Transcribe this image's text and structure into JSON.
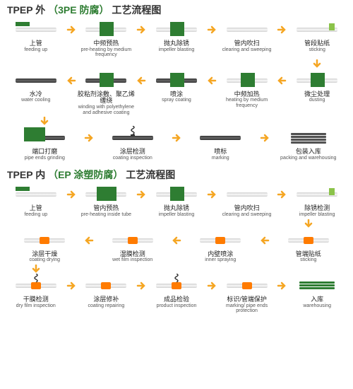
{
  "colors": {
    "green": "#2e7d32",
    "arrow": "#f5a623",
    "text": "#222",
    "subtext": "#555",
    "pipe": "#d0d0d0",
    "pipeDark": "#444",
    "orange": "#ff7b00"
  },
  "section1": {
    "title_prefix": "TPEP 外",
    "title_green": "（3PE 防腐）",
    "title_suffix": "工艺流程图",
    "rows": [
      {
        "dir": "right",
        "steps": [
          {
            "cn": "上管",
            "en": "feeding up",
            "icon": "pipe-rack"
          },
          {
            "cn": "中频预热",
            "en": "pre-heating by medium frequency",
            "icon": "pipe-greenbox"
          },
          {
            "cn": "抛丸除锈",
            "en": "impeller blasting",
            "icon": "pipe-greenbox"
          },
          {
            "cn": "管内吹扫",
            "en": "clearing and sweeping",
            "icon": "pipe"
          },
          {
            "cn": "管段贴纸",
            "en": "sticking",
            "icon": "pipe-tag"
          }
        ]
      },
      {
        "dir": "left",
        "steps": [
          {
            "cn": "水冷",
            "en": "water cooling",
            "icon": "pipe-dark"
          },
          {
            "cn": "胶粘剂涂敷、聚乙烯缠绕",
            "en": "winding with polyethylene and adhesive coating",
            "icon": "pipe-dark-greenbox"
          },
          {
            "cn": "喷涂",
            "en": "spray coating",
            "icon": "pipe-dark-greenbox"
          },
          {
            "cn": "中频加热",
            "en": "heating by medium frequency",
            "icon": "pipe-greenbox"
          },
          {
            "cn": "微尘处理",
            "en": "dusting",
            "icon": "pipe-greenbox"
          }
        ]
      },
      {
        "dir": "right",
        "steps": [
          {
            "cn": "端口打磨",
            "en": "pipe ends grinding",
            "icon": "grinder"
          },
          {
            "cn": "涂层检测",
            "en": "coating inspection",
            "icon": "pipe-dark-spring"
          },
          {
            "cn": "喷标",
            "en": "marking",
            "icon": "pipe-dark"
          },
          {
            "cn": "包装入库",
            "en": "packing and warehousing",
            "icon": "pipes-stacked"
          }
        ]
      }
    ]
  },
  "section2": {
    "title_prefix": "TPEP 内",
    "title_green": "（EP 涂塑防腐）",
    "title_suffix": "工艺流程图",
    "rows": [
      {
        "dir": "right",
        "steps": [
          {
            "cn": "上管",
            "en": "feeding up",
            "icon": "pipe-rack"
          },
          {
            "cn": "管内预热",
            "en": "pre-heating inside tube",
            "icon": "pipe-greenbox-wide"
          },
          {
            "cn": "抛丸除锈",
            "en": "impeller blasting",
            "icon": "pipe-greenbox"
          },
          {
            "cn": "管内吹扫",
            "en": "clearing and sweeping",
            "icon": "pipe"
          },
          {
            "cn": "除锈检测",
            "en": "impeller blasting",
            "icon": "pipe-tag"
          }
        ]
      },
      {
        "dir": "left",
        "steps": [
          {
            "cn": "涂层干燥",
            "en": "coating drying",
            "icon": "pipe-orange"
          },
          {
            "cn": "湿膜检测",
            "en": "wet film inspection",
            "icon": "pipe-orange"
          },
          {
            "cn": "内壁喷涂",
            "en": "inner spraying",
            "icon": "pipe-orange"
          },
          {
            "cn": "管端贴纸",
            "en": "sticking",
            "icon": "pipe-orange"
          }
        ]
      },
      {
        "dir": "right",
        "steps": [
          {
            "cn": "干膜检测",
            "en": "dry film inspection",
            "icon": "pipe-orange-spring"
          },
          {
            "cn": "涂层修补",
            "en": "coating repairing",
            "icon": "pipe-orange"
          },
          {
            "cn": "成品检验",
            "en": "product inspection",
            "icon": "pipe-orange-spring"
          },
          {
            "cn": "标识/管端保护",
            "en": "marking/ pipe ends protection",
            "icon": "pipe-orange"
          },
          {
            "cn": "入库",
            "en": "warehousing",
            "icon": "pipes-stacked-green"
          }
        ]
      }
    ]
  }
}
